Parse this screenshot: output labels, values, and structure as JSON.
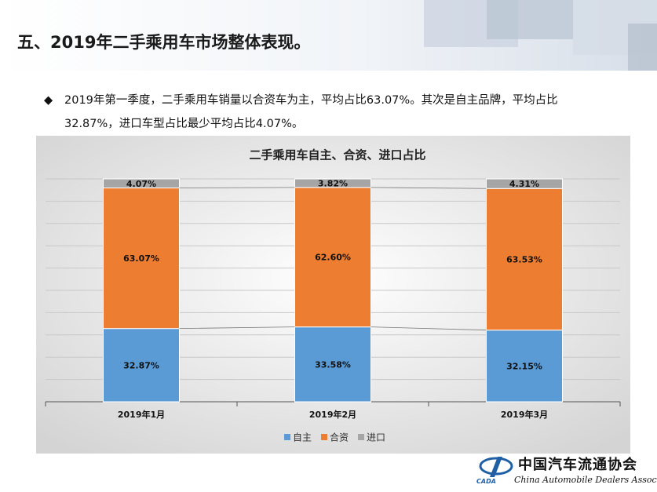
{
  "header": {
    "title": "五、2019年二手乘用车市场整体表现。"
  },
  "bullet": {
    "lines": [
      "2019年第一季度，二手乘用车销量以合资车为主，平均占比63.07%。其次是自主品牌，平均占比",
      "32.87%，进口车型占比最少平均占比4.07%。"
    ]
  },
  "chart_data": {
    "type": "stacked_bar",
    "title": "二手乘用车自主、合资、进口占比",
    "categories": [
      "2019年1月",
      "2019年2月",
      "2019年3月"
    ],
    "series": [
      {
        "name": "自主",
        "color": "#5b9bd5",
        "values": [
          32.87,
          33.58,
          32.15
        ],
        "value_labels": [
          "32.87%",
          "33.58%",
          "32.15%"
        ]
      },
      {
        "name": "合资",
        "color": "#ed7d31",
        "values": [
          63.07,
          62.6,
          63.53
        ],
        "value_labels": [
          "63.07%",
          "62.60%",
          "63.53%"
        ]
      },
      {
        "name": "进口",
        "color": "#a5a5a5",
        "values": [
          4.07,
          3.82,
          4.31
        ],
        "value_labels": [
          "4.07%",
          "3.82%",
          "4.31%"
        ]
      }
    ],
    "ylim": [
      0,
      100
    ],
    "yticks": [
      0,
      10,
      20,
      30,
      40,
      50,
      60,
      70,
      80,
      90,
      100
    ],
    "grid": true,
    "legend": "bottom"
  },
  "logo": {
    "name": "中国汽车流通协会",
    "english": "China Automobile Dealers Association",
    "abbr": "CADA"
  }
}
